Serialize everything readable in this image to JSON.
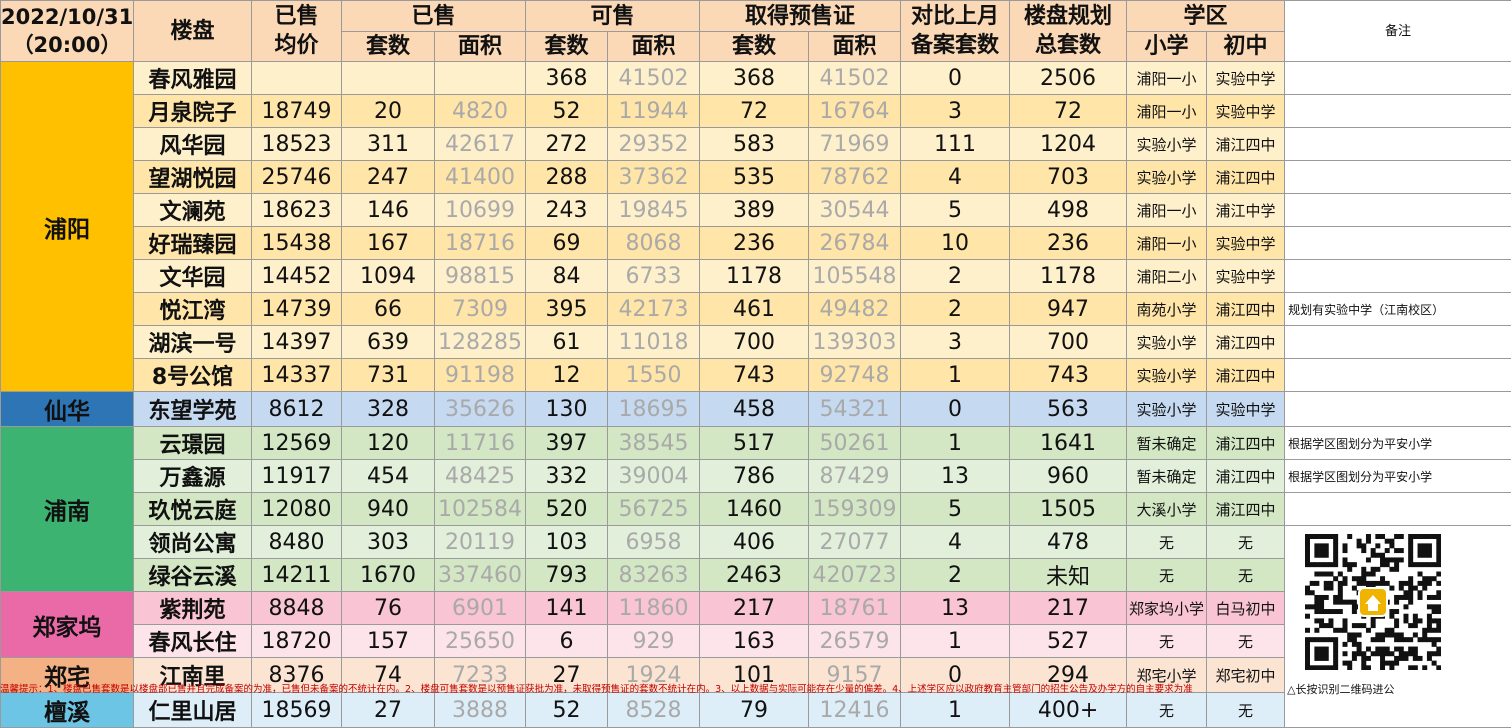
{
  "header": {
    "date": "2022/10/31",
    "time": "（20:00）",
    "project": "楼盘",
    "avg_price_1": "已售",
    "avg_price_2": "均价",
    "sold": "已售",
    "available": "可售",
    "permit": "取得预售证",
    "compare_1": "对比上月",
    "compare_2": "备案套数",
    "plan_1": "楼盘规划",
    "plan_2": "总套数",
    "school": "学区",
    "note": "备注",
    "units": "套数",
    "area": "面积",
    "primary": "小学",
    "junior": "初中"
  },
  "regions": [
    "浦阳",
    "仙华",
    "浦南",
    "郑家坞",
    "郑宅",
    "檀溪"
  ],
  "rows": [
    {
      "name": "春风雅园",
      "avg": "",
      "sold_units": "",
      "sold_area": "",
      "avail_units": "368",
      "avail_area": "41502",
      "permit_units": "368",
      "permit_area": "41502",
      "compare": "0",
      "plan_total": "2506",
      "primary": "浦阳一小",
      "junior": "实验中学",
      "note": ""
    },
    {
      "name": "月泉院子",
      "avg": "18749",
      "sold_units": "20",
      "sold_area": "4820",
      "avail_units": "52",
      "avail_area": "11944",
      "permit_units": "72",
      "permit_area": "16764",
      "compare": "3",
      "plan_total": "72",
      "primary": "浦阳一小",
      "junior": "实验中学",
      "note": ""
    },
    {
      "name": "风华园",
      "avg": "18523",
      "sold_units": "311",
      "sold_area": "42617",
      "avail_units": "272",
      "avail_area": "29352",
      "permit_units": "583",
      "permit_area": "71969",
      "compare": "111",
      "plan_total": "1204",
      "primary": "实验小学",
      "junior": "浦江四中",
      "note": ""
    },
    {
      "name": "望湖悦园",
      "avg": "25746",
      "sold_units": "247",
      "sold_area": "41400",
      "avail_units": "288",
      "avail_area": "37362",
      "permit_units": "535",
      "permit_area": "78762",
      "compare": "4",
      "plan_total": "703",
      "primary": "实验小学",
      "junior": "浦江四中",
      "note": ""
    },
    {
      "name": "文澜苑",
      "avg": "18623",
      "sold_units": "146",
      "sold_area": "10699",
      "avail_units": "243",
      "avail_area": "19845",
      "permit_units": "389",
      "permit_area": "30544",
      "compare": "5",
      "plan_total": "498",
      "primary": "浦阳一小",
      "junior": "浦江中学",
      "note": ""
    },
    {
      "name": "好瑞臻园",
      "avg": "15438",
      "sold_units": "167",
      "sold_area": "18716",
      "avail_units": "69",
      "avail_area": "8068",
      "permit_units": "236",
      "permit_area": "26784",
      "compare": "10",
      "plan_total": "236",
      "primary": "浦阳一小",
      "junior": "实验中学",
      "note": ""
    },
    {
      "name": "文华园",
      "avg": "14452",
      "sold_units": "1094",
      "sold_area": "98815",
      "avail_units": "84",
      "avail_area": "6733",
      "permit_units": "1178",
      "permit_area": "105548",
      "compare": "2",
      "plan_total": "1178",
      "primary": "浦阳二小",
      "junior": "实验中学",
      "note": ""
    },
    {
      "name": "悦江湾",
      "avg": "14739",
      "sold_units": "66",
      "sold_area": "7309",
      "avail_units": "395",
      "avail_area": "42173",
      "permit_units": "461",
      "permit_area": "49482",
      "compare": "2",
      "plan_total": "947",
      "primary": "南苑小学",
      "junior": "浦江四中",
      "note": "规划有实验中学（江南校区）"
    },
    {
      "name": "湖滨一号",
      "avg": "14397",
      "sold_units": "639",
      "sold_area": "128285",
      "avail_units": "61",
      "avail_area": "11018",
      "permit_units": "700",
      "permit_area": "139303",
      "compare": "3",
      "plan_total": "700",
      "primary": "实验小学",
      "junior": "浦江四中",
      "note": ""
    },
    {
      "name": "8号公馆",
      "avg": "14337",
      "sold_units": "731",
      "sold_area": "91198",
      "avail_units": "12",
      "avail_area": "1550",
      "permit_units": "743",
      "permit_area": "92748",
      "compare": "1",
      "plan_total": "743",
      "primary": "实验小学",
      "junior": "浦江四中",
      "note": ""
    },
    {
      "name": "东望学苑",
      "avg": "8612",
      "sold_units": "328",
      "sold_area": "35626",
      "avail_units": "130",
      "avail_area": "18695",
      "permit_units": "458",
      "permit_area": "54321",
      "compare": "0",
      "plan_total": "563",
      "primary": "实验小学",
      "junior": "实验中学",
      "note": ""
    },
    {
      "name": "云璟园",
      "avg": "12569",
      "sold_units": "120",
      "sold_area": "11716",
      "avail_units": "397",
      "avail_area": "38545",
      "permit_units": "517",
      "permit_area": "50261",
      "compare": "1",
      "plan_total": "1641",
      "primary": "暂未确定",
      "junior": "浦江四中",
      "note": "根据学区图划分为平安小学"
    },
    {
      "name": "万鑫源",
      "avg": "11917",
      "sold_units": "454",
      "sold_area": "48425",
      "avail_units": "332",
      "avail_area": "39004",
      "permit_units": "786",
      "permit_area": "87429",
      "compare": "13",
      "plan_total": "960",
      "primary": "暂未确定",
      "junior": "浦江四中",
      "note": "根据学区图划分为平安小学"
    },
    {
      "name": "玖悦云庭",
      "avg": "12080",
      "sold_units": "940",
      "sold_area": "102584",
      "avail_units": "520",
      "avail_area": "56725",
      "permit_units": "1460",
      "permit_area": "159309",
      "compare": "5",
      "plan_total": "1505",
      "primary": "大溪小学",
      "junior": "浦江四中",
      "note": ""
    },
    {
      "name": "领尚公寓",
      "avg": "8480",
      "sold_units": "303",
      "sold_area": "20119",
      "avail_units": "103",
      "avail_area": "6958",
      "permit_units": "406",
      "permit_area": "27077",
      "compare": "4",
      "plan_total": "478",
      "primary": "无",
      "junior": "无",
      "note": ""
    },
    {
      "name": "绿谷云溪",
      "avg": "14211",
      "sold_units": "1670",
      "sold_area": "337460",
      "avail_units": "793",
      "avail_area": "83263",
      "permit_units": "2463",
      "permit_area": "420723",
      "compare": "2",
      "plan_total": "未知",
      "primary": "无",
      "junior": "无",
      "note": ""
    },
    {
      "name": "紫荆苑",
      "avg": "8848",
      "sold_units": "76",
      "sold_area": "6901",
      "avail_units": "141",
      "avail_area": "11860",
      "permit_units": "217",
      "permit_area": "18761",
      "compare": "13",
      "plan_total": "217",
      "primary": "郑家坞小学",
      "junior": "白马初中",
      "note": ""
    },
    {
      "name": "春风长住",
      "avg": "18720",
      "sold_units": "157",
      "sold_area": "25650",
      "avail_units": "6",
      "avail_area": "929",
      "permit_units": "163",
      "permit_area": "26579",
      "compare": "1",
      "plan_total": "527",
      "primary": "无",
      "junior": "无",
      "note": ""
    },
    {
      "name": "江南里",
      "avg": "8376",
      "sold_units": "74",
      "sold_area": "7233",
      "avail_units": "27",
      "avail_area": "1924",
      "permit_units": "101",
      "permit_area": "9157",
      "compare": "0",
      "plan_total": "294",
      "primary": "郑宅小学",
      "junior": "郑宅初中",
      "note": ""
    },
    {
      "name": "仁里山居",
      "avg": "18569",
      "sold_units": "27",
      "sold_area": "3888",
      "avail_units": "52",
      "avail_area": "8528",
      "permit_units": "79",
      "permit_area": "12416",
      "compare": "1",
      "plan_total": "400+",
      "primary": "无",
      "junior": "无",
      "note": ""
    }
  ],
  "qr_caption": "△长按识别二维码进公",
  "disclaimer": "温馨提示：1、楼盘已售套数是以楼盘部已售并且完成备案的为准，已售但未备案的不统计在内。2、楼盘可售套数是以预售证获批为准，未取得预售证的套数不统计在内。3、以上数据与实际可能存在少量的偏差。4、上述学区应以政府教育主管部门的招生公告及办学方的自主要求为准"
}
